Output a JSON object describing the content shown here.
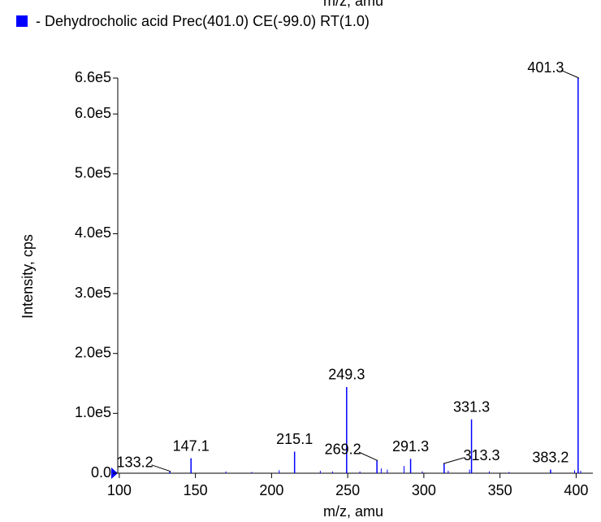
{
  "chart_data": {
    "type": "stem",
    "legend": "- Dehydrocholic acid Prec(401.0) CE(-99.0) RT(1.0)",
    "xlabel": "m/z, amu",
    "ylabel": "Intensity, cps",
    "color": "#0000ff",
    "xlim": [
      99,
      411
    ],
    "xticks": [
      100,
      150,
      200,
      250,
      300,
      350,
      400
    ],
    "ylim": [
      0,
      660000
    ],
    "yticks": [
      {
        "value": 0,
        "label": "0.0"
      },
      {
        "value": 100000,
        "label": "1.0e5"
      },
      {
        "value": 200000,
        "label": "2.0e5"
      },
      {
        "value": 300000,
        "label": "3.0e5"
      },
      {
        "value": 400000,
        "label": "4.0e5"
      },
      {
        "value": 500000,
        "label": "5.0e5"
      },
      {
        "value": 600000,
        "label": "6.0e5"
      },
      {
        "value": 660000,
        "label": "6.6e5"
      }
    ],
    "peaks": {
      "x": [
        133.2,
        147.1,
        215.1,
        249.3,
        269.2,
        291.3,
        313.3,
        331.3,
        383.2,
        401.3
      ],
      "values": [
        3000,
        25000,
        36000,
        144000,
        21000,
        24000,
        16000,
        90000,
        6000,
        660000
      ]
    },
    "minor_peaks": {
      "x": [
        170,
        187,
        205,
        232,
        240,
        258,
        272,
        276,
        287,
        299,
        316,
        330,
        343,
        356,
        399,
        403
      ],
      "values": [
        3000,
        2000,
        5000,
        4000,
        3000,
        3000,
        8000,
        6000,
        12000,
        3000,
        4000,
        6000,
        3000,
        2000,
        5000,
        4000
      ]
    }
  }
}
